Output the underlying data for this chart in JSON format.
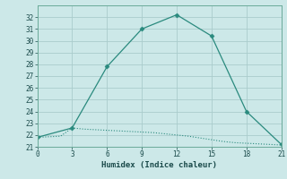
{
  "xlabel": "Humidex (Indice chaleur)",
  "line1_x": [
    0,
    3,
    6,
    9,
    12,
    15,
    18,
    21
  ],
  "line1_y": [
    21.8,
    22.6,
    27.8,
    31.0,
    32.2,
    30.4,
    24.0,
    21.2
  ],
  "line2_x": [
    0,
    1,
    2,
    3,
    4,
    5,
    6,
    7,
    8,
    9,
    10,
    11,
    12,
    13,
    14,
    15,
    16,
    17,
    18,
    19,
    20,
    21
  ],
  "line2_y": [
    21.8,
    21.85,
    21.9,
    22.6,
    22.5,
    22.45,
    22.4,
    22.35,
    22.3,
    22.25,
    22.2,
    22.1,
    22.0,
    21.9,
    21.75,
    21.6,
    21.45,
    21.35,
    21.3,
    21.25,
    21.2,
    21.15
  ],
  "line_color": "#2a8a7e",
  "bg_color": "#cce8e8",
  "grid_color": "#aacccc",
  "ylim": [
    21,
    33
  ],
  "xlim": [
    0,
    21
  ],
  "yticks": [
    21,
    22,
    23,
    24,
    25,
    26,
    27,
    28,
    29,
    30,
    31,
    32
  ],
  "xticks": [
    0,
    3,
    6,
    9,
    12,
    15,
    18,
    21
  ],
  "marker": "D",
  "markersize": 2.5,
  "tick_fontsize": 5.5,
  "xlabel_fontsize": 6.5
}
